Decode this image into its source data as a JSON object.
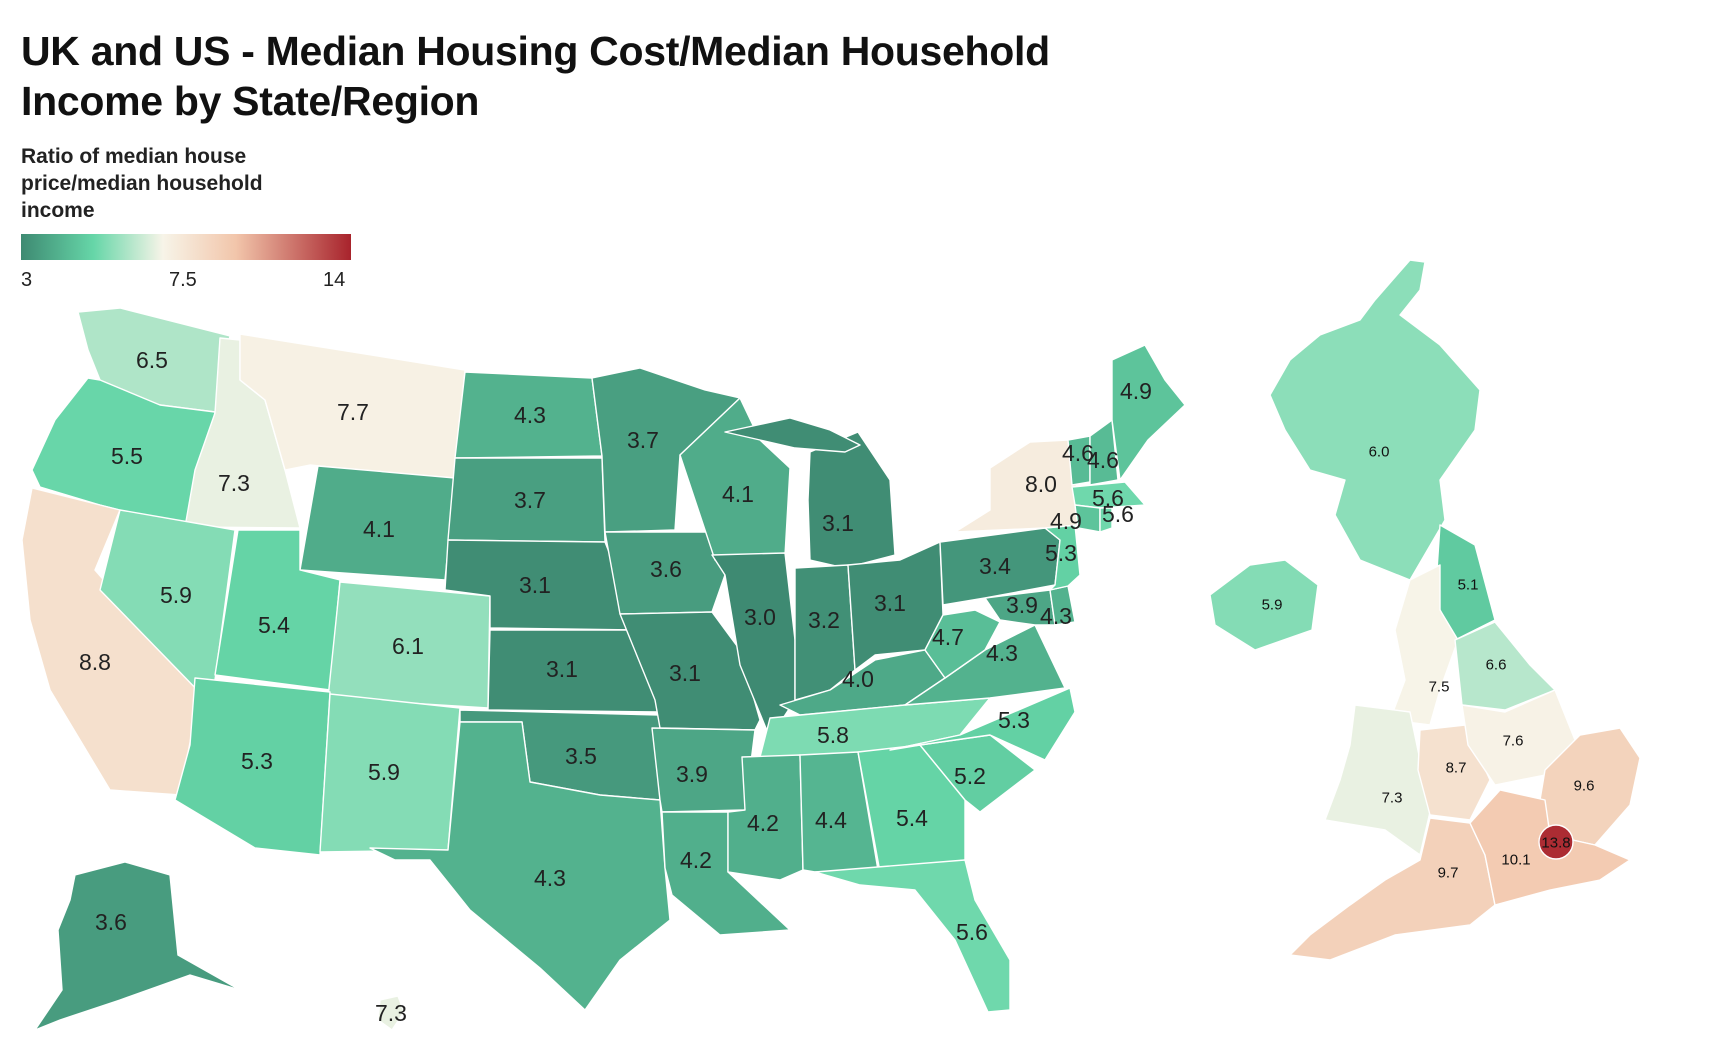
{
  "title": {
    "line1": "UK and US - Median Housing Cost/Median Household",
    "line2": "Income by State/Region"
  },
  "legend": {
    "title_lines": [
      "Ratio of median house",
      "price/median household",
      "income"
    ],
    "min_label": "3",
    "mid_label": "7.5",
    "max_label": "14",
    "domain": [
      3,
      7.5,
      14
    ],
    "color_stops": [
      "#3e8a72",
      "#66d6a8",
      "#f7f4e8",
      "#f2c6ab",
      "#a8232c"
    ]
  },
  "chart_data": {
    "type": "choropleth",
    "title": "UK and US - Median Housing Cost/Median Household Income by State/Region",
    "value_label": "Ratio of median house price/median household income",
    "scale": {
      "min": 3,
      "mid": 7.5,
      "max": 14
    },
    "us_states": [
      {
        "id": "WA",
        "value": "6.5"
      },
      {
        "id": "OR",
        "value": "5.5"
      },
      {
        "id": "CA",
        "value": "8.8"
      },
      {
        "id": "ID",
        "value": "7.3"
      },
      {
        "id": "NV",
        "value": "5.9"
      },
      {
        "id": "MT",
        "value": "7.7"
      },
      {
        "id": "WY",
        "value": "4.1"
      },
      {
        "id": "UT",
        "value": "5.4"
      },
      {
        "id": "CO",
        "value": "6.1"
      },
      {
        "id": "AZ",
        "value": "5.3"
      },
      {
        "id": "NM",
        "value": "5.9"
      },
      {
        "id": "ND",
        "value": "4.3"
      },
      {
        "id": "SD",
        "value": "3.7"
      },
      {
        "id": "NE",
        "value": "3.1"
      },
      {
        "id": "KS",
        "value": "3.1"
      },
      {
        "id": "OK",
        "value": "3.5"
      },
      {
        "id": "TX",
        "value": "4.3"
      },
      {
        "id": "MN",
        "value": "3.7"
      },
      {
        "id": "IA",
        "value": "3.6"
      },
      {
        "id": "MO",
        "value": "3.1"
      },
      {
        "id": "AR",
        "value": "3.9"
      },
      {
        "id": "LA",
        "value": "4.2"
      },
      {
        "id": "WI",
        "value": "4.1"
      },
      {
        "id": "IL",
        "value": "3.0"
      },
      {
        "id": "MI",
        "value": "3.1"
      },
      {
        "id": "IN",
        "value": "3.2"
      },
      {
        "id": "OH",
        "value": "3.1"
      },
      {
        "id": "KY",
        "value": "4.0"
      },
      {
        "id": "TN",
        "value": "5.8"
      },
      {
        "id": "MS",
        "value": "4.2"
      },
      {
        "id": "AL",
        "value": "4.4"
      },
      {
        "id": "GA",
        "value": "5.4"
      },
      {
        "id": "FL",
        "value": "5.6"
      },
      {
        "id": "SC",
        "value": "5.2"
      },
      {
        "id": "NC",
        "value": "5.3"
      },
      {
        "id": "VA",
        "value": "4.3"
      },
      {
        "id": "WV",
        "value": "4.7"
      },
      {
        "id": "MD",
        "value": "3.9"
      },
      {
        "id": "DE",
        "value": "4.3"
      },
      {
        "id": "PA",
        "value": "3.4"
      },
      {
        "id": "NJ",
        "value": "5.3"
      },
      {
        "id": "NY",
        "value": "8.0"
      },
      {
        "id": "CT",
        "value": "4.9"
      },
      {
        "id": "MA",
        "value": "5.6"
      },
      {
        "id": "RI",
        "value": "5.6"
      },
      {
        "id": "VT",
        "value": "4.6"
      },
      {
        "id": "NH",
        "value": "4.6"
      },
      {
        "id": "ME",
        "value": "4.9"
      },
      {
        "id": "AK",
        "value": "3.6"
      },
      {
        "id": "HI",
        "value": "7.3"
      }
    ],
    "uk_regions": [
      {
        "id": "Scotland",
        "value": "6.0"
      },
      {
        "id": "Northern Ireland",
        "value": "5.9"
      },
      {
        "id": "North East",
        "value": "5.1"
      },
      {
        "id": "North West",
        "value": "7.5"
      },
      {
        "id": "Yorkshire and the Humber",
        "value": "6.6"
      },
      {
        "id": "Wales",
        "value": "7.3"
      },
      {
        "id": "West Midlands",
        "value": "8.7"
      },
      {
        "id": "East Midlands",
        "value": "7.6"
      },
      {
        "id": "East of England",
        "value": "9.6"
      },
      {
        "id": "South West",
        "value": "9.7"
      },
      {
        "id": "South East",
        "value": "10.1"
      },
      {
        "id": "London",
        "value": "13.8"
      }
    ]
  }
}
